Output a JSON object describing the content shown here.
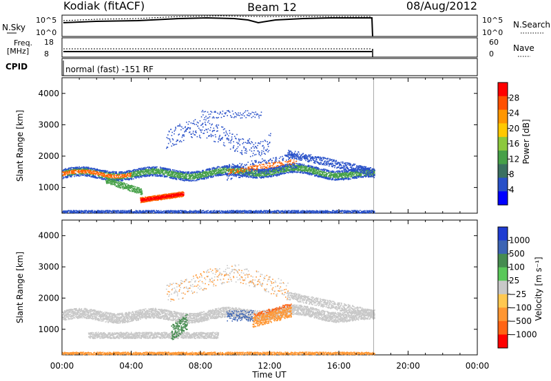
{
  "header": {
    "station": "Kodiak (fitACF)",
    "beam": "Beam 12",
    "date": "08/Aug/2012"
  },
  "status_panels": {
    "nsky": {
      "label": "N.Sky",
      "ticks": [
        "10^5",
        "10^0"
      ],
      "right_ticks": [
        "10^5",
        "10^0"
      ],
      "right_label": "N.Search"
    },
    "freq": {
      "label_line1": "Freq.",
      "label_line2": "[MHz]",
      "ticks": [
        "18",
        "8"
      ],
      "right_ticks": [
        "60",
        "0"
      ],
      "right_label": "Nave"
    },
    "cpid": {
      "label": "CPID",
      "text": "normal (fast) -151 RF"
    }
  },
  "chart_data": [
    {
      "type": "heatmap",
      "name": "power",
      "ylabel": "Slant Range [km]",
      "xlabel": "",
      "ylim": [
        180,
        4500
      ],
      "yticks": [
        1000,
        2000,
        3000,
        4000
      ],
      "xlim": [
        0,
        24
      ],
      "colorbar": {
        "label": "Power [dB]",
        "ticks": [
          4,
          8,
          12,
          16,
          20,
          24,
          28
        ],
        "range": [
          0,
          32
        ],
        "colors": [
          "#0000ff",
          "#2850c8",
          "#3a7060",
          "#46a048",
          "#8cc83c",
          "#ffc800",
          "#ff9600",
          "#ff5000",
          "#ff0000"
        ]
      }
    },
    {
      "type": "heatmap",
      "name": "velocity",
      "ylabel": "Slant Range [km]",
      "xlabel": "Time UT",
      "ylim": [
        180,
        4500
      ],
      "yticks": [
        1000,
        2000,
        3000,
        4000
      ],
      "xlim": [
        0,
        24
      ],
      "xticks": [
        "00:00",
        "04:00",
        "08:00",
        "12:00",
        "16:00",
        "20:00",
        "00:00"
      ],
      "colorbar": {
        "label": "Velocity [m s⁻¹]",
        "ticks": [
          "1000",
          "500",
          "100",
          "25",
          "−25",
          "−100",
          "−500",
          "−1000"
        ],
        "colors": [
          "#1f3cd2",
          "#3c64b4",
          "#468c50",
          "#5ac85a",
          "#c8c8c8",
          "#ffc850",
          "#ff9632",
          "#ff6414",
          "#ff0000"
        ]
      }
    }
  ],
  "scatter_colors": {
    "power_low": "#2850c8",
    "power_mid": "#46a048",
    "power_high": "#ff6400",
    "power_peak": "#ff0000",
    "vel_ground": "#c8c8c8",
    "vel_pos": "#3c64b4",
    "vel_green": "#468c50",
    "vel_neg": "#ff9632",
    "vel_neg_strong": "#ff6414"
  }
}
